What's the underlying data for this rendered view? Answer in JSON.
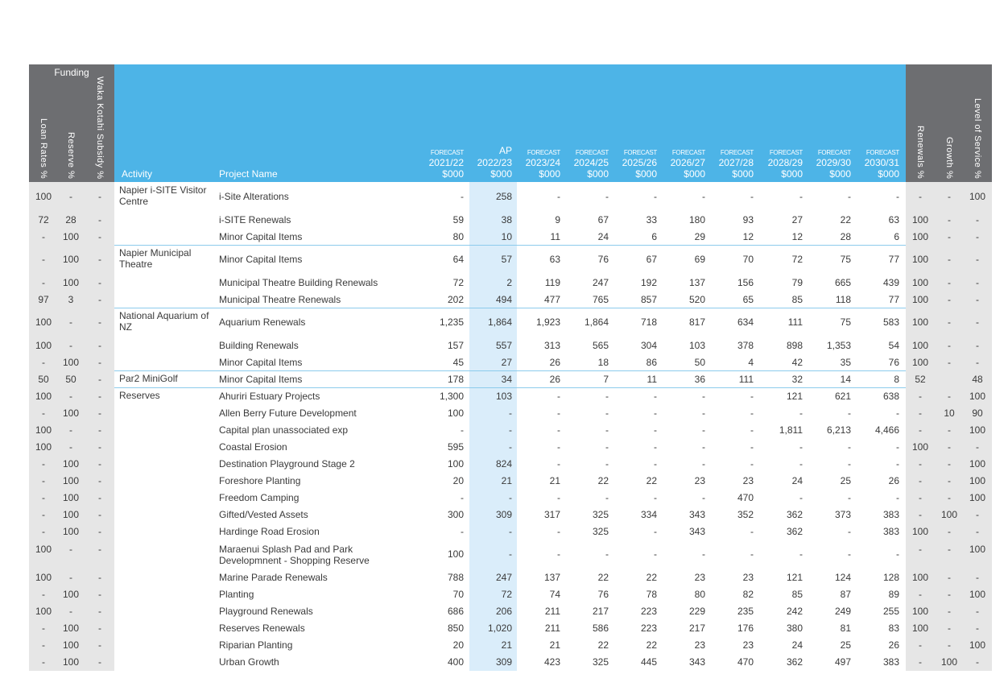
{
  "header": {
    "funding": "Funding",
    "funding_columns": [
      "Loan Rates %",
      "Reserve %",
      "Waka Kotahi Subsidy %"
    ],
    "activity": "Activity",
    "project": "Project Name",
    "years": [
      {
        "kind": "FORECAST",
        "year": "2021/22",
        "unit": "$000"
      },
      {
        "kind": "AP",
        "year": "2022/23",
        "unit": "$000"
      },
      {
        "kind": "FORECAST",
        "year": "2023/24",
        "unit": "$000"
      },
      {
        "kind": "FORECAST",
        "year": "2024/25",
        "unit": "$000"
      },
      {
        "kind": "FORECAST",
        "year": "2025/26",
        "unit": "$000"
      },
      {
        "kind": "FORECAST",
        "year": "2026/27",
        "unit": "$000"
      },
      {
        "kind": "FORECAST",
        "year": "2027/28",
        "unit": "$000"
      },
      {
        "kind": "FORECAST",
        "year": "2028/29",
        "unit": "$000"
      },
      {
        "kind": "FORECAST",
        "year": "2029/30",
        "unit": "$000"
      },
      {
        "kind": "FORECAST",
        "year": "2030/31",
        "unit": "$000"
      }
    ],
    "split_columns": [
      "Renewals %",
      "Growth %",
      "Level of Service %"
    ]
  },
  "rows": [
    {
      "funding": [
        "100",
        "-",
        "-"
      ],
      "activity": "Napier i-SITE Visitor Centre",
      "project": "i-Site Alterations",
      "values": [
        "-",
        "258",
        "-",
        "-",
        "-",
        "-",
        "-",
        "-",
        "-",
        "-"
      ],
      "split": [
        "-",
        "-",
        "100"
      ]
    },
    {
      "funding": [
        "72",
        "28",
        "-"
      ],
      "project": "i-SITE Renewals",
      "values": [
        "59",
        "38",
        "9",
        "67",
        "33",
        "180",
        "93",
        "27",
        "22",
        "63"
      ],
      "split": [
        "100",
        "-",
        "-"
      ]
    },
    {
      "funding": [
        "-",
        "100",
        "-"
      ],
      "project": "Minor Capital Items",
      "values": [
        "80",
        "10",
        "11",
        "24",
        "6",
        "29",
        "12",
        "12",
        "28",
        "6"
      ],
      "split": [
        "100",
        "-",
        "-"
      ]
    },
    {
      "funding": [
        "-",
        "100",
        "-"
      ],
      "activity": "Napier Municipal Theatre",
      "project": "Minor Capital Items",
      "values": [
        "64",
        "57",
        "63",
        "76",
        "67",
        "69",
        "70",
        "72",
        "75",
        "77"
      ],
      "split": [
        "100",
        "-",
        "-"
      ]
    },
    {
      "funding": [
        "-",
        "100",
        "-"
      ],
      "project": "Municipal Theatre Building Renewals",
      "values": [
        "72",
        "2",
        "119",
        "247",
        "192",
        "137",
        "156",
        "79",
        "665",
        "439"
      ],
      "split": [
        "100",
        "-",
        "-"
      ]
    },
    {
      "funding": [
        "97",
        "3",
        "-"
      ],
      "project": "Municipal Theatre Renewals",
      "values": [
        "202",
        "494",
        "477",
        "765",
        "857",
        "520",
        "65",
        "85",
        "118",
        "77"
      ],
      "split": [
        "100",
        "-",
        "-"
      ]
    },
    {
      "funding": [
        "100",
        "-",
        "-"
      ],
      "activity": "National Aquarium of NZ",
      "project": "Aquarium Renewals",
      "values": [
        "1,235",
        "1,864",
        "1,923",
        "1,864",
        "718",
        "817",
        "634",
        "111",
        "75",
        "583"
      ],
      "split": [
        "100",
        "-",
        "-"
      ]
    },
    {
      "funding": [
        "100",
        "-",
        "-"
      ],
      "project": "Building Renewals",
      "values": [
        "157",
        "557",
        "313",
        "565",
        "304",
        "103",
        "378",
        "898",
        "1,353",
        "54"
      ],
      "split": [
        "100",
        "-",
        "-"
      ]
    },
    {
      "funding": [
        "-",
        "100",
        "-"
      ],
      "project": "Minor Capital Items",
      "values": [
        "45",
        "27",
        "26",
        "18",
        "86",
        "50",
        "4",
        "42",
        "35",
        "76"
      ],
      "split": [
        "100",
        "-",
        "-"
      ]
    },
    {
      "funding": [
        "50",
        "50",
        "-"
      ],
      "activity": "Par2 MiniGolf",
      "project": "Minor Capital Items",
      "values": [
        "178",
        "34",
        "26",
        "7",
        "11",
        "36",
        "111",
        "32",
        "14",
        "8"
      ],
      "split": [
        "52",
        null,
        "48"
      ]
    },
    {
      "funding": [
        "100",
        "-",
        "-"
      ],
      "activity": "Reserves",
      "project": "Ahuriri Estuary Projects",
      "values": [
        "1,300",
        "103",
        "-",
        "-",
        "-",
        "-",
        "-",
        "121",
        "621",
        "638"
      ],
      "split": [
        "-",
        "-",
        "100"
      ]
    },
    {
      "funding": [
        "-",
        "100",
        "-"
      ],
      "project": "Allen Berry Future Development",
      "values": [
        "100",
        "-",
        "-",
        "-",
        "-",
        "-",
        "-",
        "-",
        "-",
        "-"
      ],
      "split": [
        "-",
        "10",
        "90"
      ]
    },
    {
      "funding": [
        "100",
        "-",
        "-"
      ],
      "project": "Capital plan unassociated exp",
      "values": [
        "-",
        "-",
        "-",
        "-",
        "-",
        "-",
        "-",
        "1,811",
        "6,213",
        "4,466"
      ],
      "split": [
        "-",
        "-",
        "100"
      ]
    },
    {
      "funding": [
        "100",
        "-",
        "-"
      ],
      "project": "Coastal Erosion",
      "values": [
        "595",
        "-",
        "-",
        "-",
        "-",
        "-",
        "-",
        "-",
        "-",
        "-"
      ],
      "split": [
        "100",
        "-",
        "-"
      ]
    },
    {
      "funding": [
        "-",
        "100",
        "-"
      ],
      "project": "Destination Playground Stage 2",
      "values": [
        "100",
        "824",
        "-",
        "-",
        "-",
        "-",
        "-",
        "-",
        "-",
        "-"
      ],
      "split": [
        "-",
        "-",
        "100"
      ]
    },
    {
      "funding": [
        "-",
        "100",
        "-"
      ],
      "project": "Foreshore Planting",
      "values": [
        "20",
        "21",
        "21",
        "22",
        "22",
        "23",
        "23",
        "24",
        "25",
        "26"
      ],
      "split": [
        "-",
        "-",
        "100"
      ]
    },
    {
      "funding": [
        "-",
        "100",
        "-"
      ],
      "project": "Freedom Camping",
      "values": [
        "-",
        "-",
        "-",
        "-",
        "-",
        "-",
        "470",
        "-",
        "-",
        "-"
      ],
      "split": [
        "-",
        "-",
        "100"
      ]
    },
    {
      "funding": [
        "-",
        "100",
        "-"
      ],
      "project": "Gifted/Vested Assets",
      "values": [
        "300",
        "309",
        "317",
        "325",
        "334",
        "343",
        "352",
        "362",
        "373",
        "383"
      ],
      "split": [
        "-",
        "100",
        "-"
      ]
    },
    {
      "funding": [
        "-",
        "100",
        "-"
      ],
      "project": "Hardinge Road Erosion",
      "values": [
        "-",
        "-",
        "-",
        "325",
        "-",
        "343",
        "-",
        "362",
        "-",
        "383"
      ],
      "split": [
        "100",
        "-",
        "-"
      ]
    },
    {
      "funding": [
        "100",
        "-",
        "-"
      ],
      "project": "Maraenui Splash Pad and Park Developmnent - Shopping Reserve",
      "values": [
        "100",
        "-",
        "-",
        "-",
        "-",
        "-",
        "-",
        "-",
        "-",
        "-"
      ],
      "split": [
        "-",
        "-",
        "100"
      ]
    },
    {
      "funding": [
        "100",
        "-",
        "-"
      ],
      "project": "Marine Parade Renewals",
      "values": [
        "788",
        "247",
        "137",
        "22",
        "22",
        "23",
        "23",
        "121",
        "124",
        "128"
      ],
      "split": [
        "100",
        "-",
        "-"
      ]
    },
    {
      "funding": [
        "-",
        "100",
        "-"
      ],
      "project": "Planting",
      "values": [
        "70",
        "72",
        "74",
        "76",
        "78",
        "80",
        "82",
        "85",
        "87",
        "89"
      ],
      "split": [
        "-",
        "-",
        "100"
      ]
    },
    {
      "funding": [
        "100",
        "-",
        "-"
      ],
      "project": "Playground Renewals",
      "values": [
        "686",
        "206",
        "211",
        "217",
        "223",
        "229",
        "235",
        "242",
        "249",
        "255"
      ],
      "split": [
        "100",
        "-",
        "-"
      ]
    },
    {
      "funding": [
        "-",
        "100",
        "-"
      ],
      "project": "Reserves Renewals",
      "values": [
        "850",
        "1,020",
        "211",
        "586",
        "223",
        "217",
        "176",
        "380",
        "81",
        "83"
      ],
      "split": [
        "100",
        "-",
        "-"
      ]
    },
    {
      "funding": [
        "-",
        "100",
        "-"
      ],
      "project": "Riparian Planting",
      "values": [
        "20",
        "21",
        "21",
        "22",
        "22",
        "23",
        "23",
        "24",
        "25",
        "26"
      ],
      "split": [
        "-",
        "-",
        "100"
      ]
    },
    {
      "funding": [
        "-",
        "100",
        "-"
      ],
      "project": "Urban Growth",
      "values": [
        "400",
        "309",
        "423",
        "325",
        "445",
        "343",
        "470",
        "362",
        "497",
        "383"
      ],
      "split": [
        "-",
        "100",
        "-"
      ]
    }
  ]
}
